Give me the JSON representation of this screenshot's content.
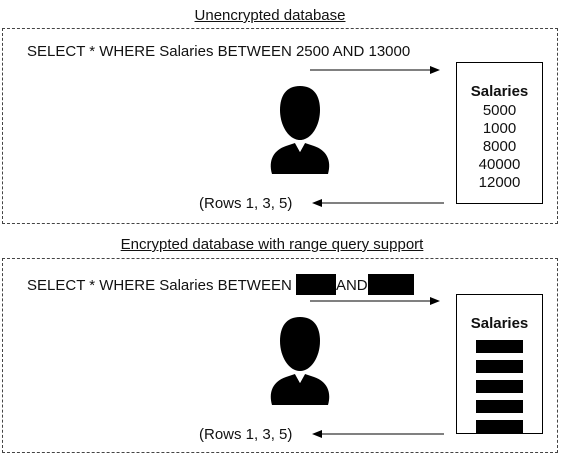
{
  "unencrypted": {
    "title": "Unencrypted database",
    "query": "SELECT * WHERE Salaries BETWEEN 2500 AND 13000",
    "db_header": "Salaries",
    "salaries": [
      "5000",
      "1000",
      "8000",
      "40000",
      "12000"
    ],
    "result": "(Rows 1, 3, 5)"
  },
  "encrypted": {
    "title": "Encrypted database with range query support",
    "query_prefix": "SELECT * WHERE Salaries BETWEEN ",
    "query_and": "AND",
    "db_header": "Salaries",
    "redacted_rows": 5,
    "result": "(Rows 1, 3, 5)"
  },
  "icons": {
    "user": "user-silhouette-icon",
    "redaction": "black-redaction-bar"
  }
}
